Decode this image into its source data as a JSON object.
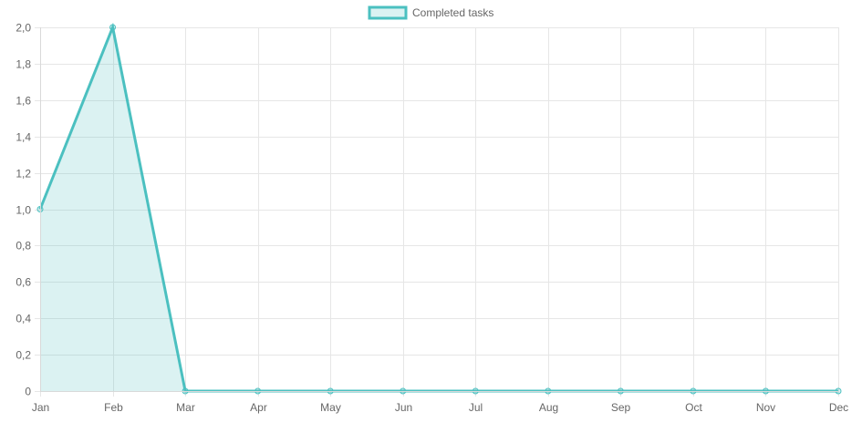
{
  "chart_data": {
    "type": "area",
    "categories": [
      "Jan",
      "Feb",
      "Mar",
      "Apr",
      "May",
      "Jun",
      "Jul",
      "Aug",
      "Sep",
      "Oct",
      "Nov",
      "Dec"
    ],
    "series": [
      {
        "name": "Completed tasks",
        "values": [
          1,
          2,
          0,
          0,
          0,
          0,
          0,
          0,
          0,
          0,
          0,
          0
        ]
      }
    ],
    "ylim": [
      0,
      2
    ],
    "y_ticks": [
      0,
      0.2,
      0.4,
      0.6,
      0.8,
      1.0,
      1.2,
      1.4,
      1.6,
      1.8,
      2.0
    ],
    "y_tick_labels": [
      "0",
      "0,2",
      "0,4",
      "0,6",
      "0,8",
      "1,0",
      "1,2",
      "1,4",
      "1,6",
      "1,8",
      "2,0"
    ],
    "grid": true,
    "legend_position": "top-center",
    "colors": {
      "line": "#4bc0c0",
      "fill": "rgba(75,192,192,0.2)",
      "grid": "#e6e6e6",
      "axis": "#d9d9d9",
      "tick_text": "#666666"
    }
  }
}
